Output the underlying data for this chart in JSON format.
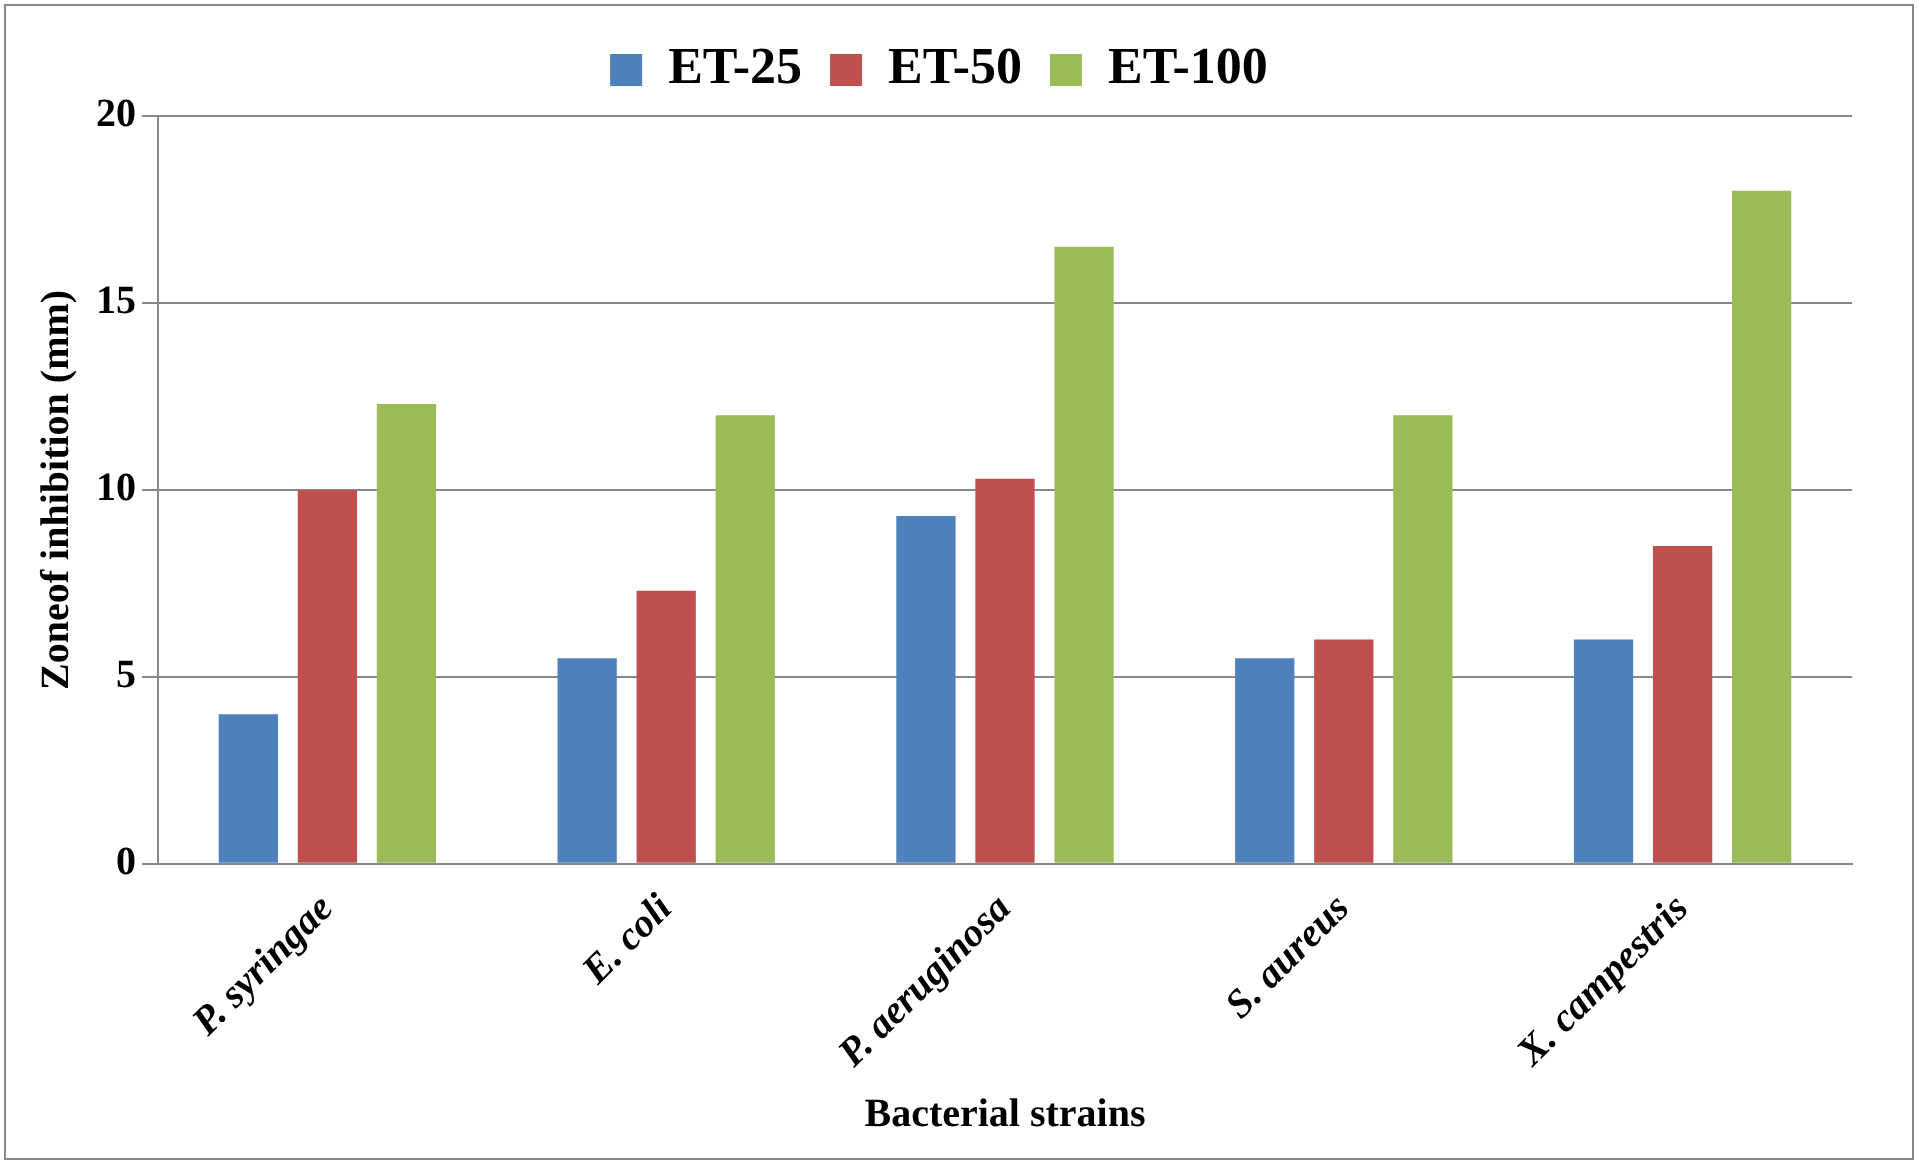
{
  "chart_data": {
    "type": "bar",
    "xlabel": "Bacterial strains",
    "ylabel": "Zoneof inhibition (mm)",
    "categories": [
      "P. syringae",
      "E. coli",
      "P. aeruginosa",
      "S. aureus",
      "X. campestris"
    ],
    "series": [
      {
        "name": "ET-25",
        "color": "#4f81bd",
        "values": [
          4,
          5.5,
          9.3,
          5.5,
          6
        ]
      },
      {
        "name": "ET-50",
        "color": "#c0504d",
        "values": [
          10,
          7.3,
          10.3,
          6,
          8.5
        ]
      },
      {
        "name": "ET-100",
        "color": "#9bbb59",
        "values": [
          12.3,
          12,
          16.5,
          12,
          18
        ]
      }
    ],
    "ylim": [
      0,
      20
    ],
    "yticks": [
      0,
      5,
      10,
      15,
      20
    ],
    "grid": "y",
    "legend": "top"
  }
}
